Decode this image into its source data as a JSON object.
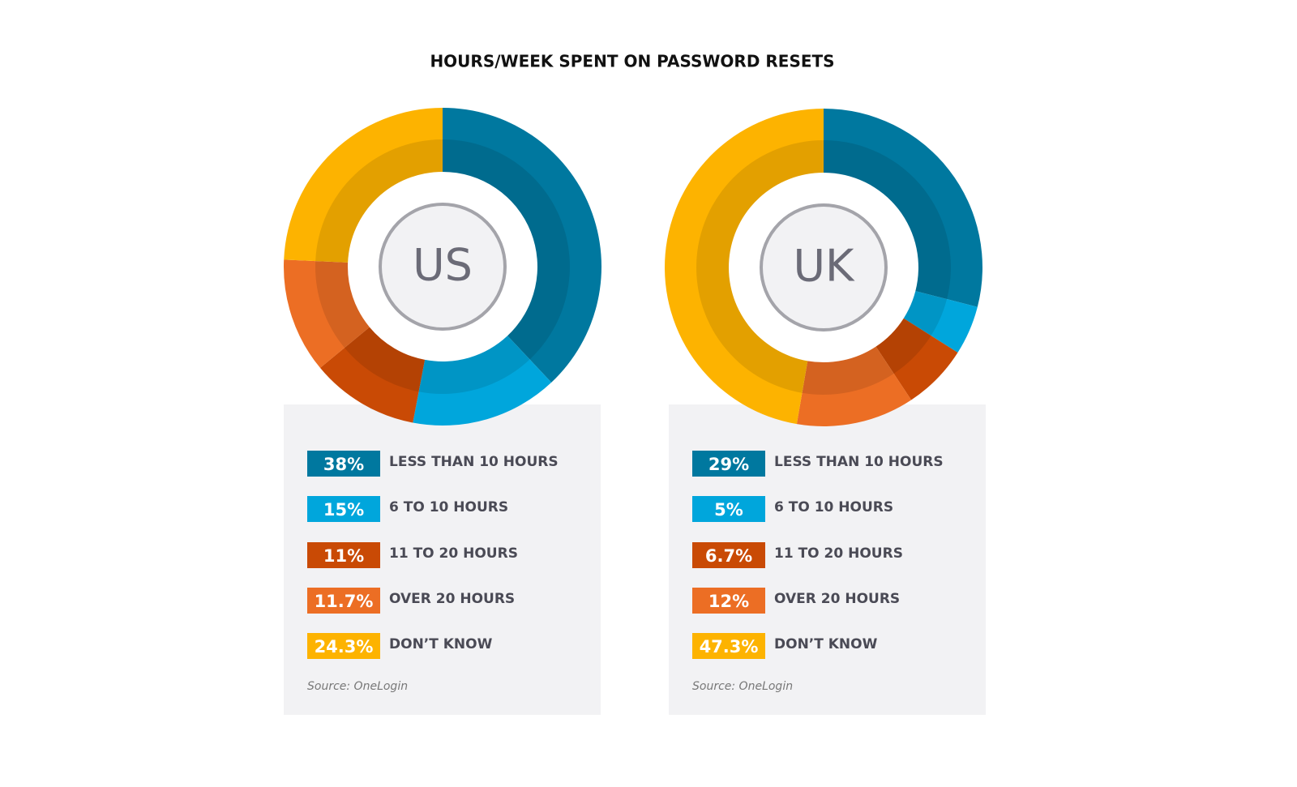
{
  "title": "HOURS/WEEK SPENT ON PASSWORD RESETS",
  "chart_data": [
    {
      "type": "pie",
      "label": "US",
      "categories": [
        "LESS THAN 10 HOURS",
        "6 TO 10 HOURS",
        "11 TO 20 HOURS",
        "OVER 20 HOURS",
        "DON’T KNOW"
      ],
      "values": [
        38,
        15,
        11,
        11.7,
        24.3
      ],
      "value_labels": [
        "38%",
        "15%",
        "11%",
        "11.7%",
        "24.3%"
      ],
      "colors": [
        "#00789f",
        "#00a6dc",
        "#c94a05",
        "#ec6e24",
        "#fdb300"
      ],
      "source": "Source: OneLogin"
    },
    {
      "type": "pie",
      "label": "UK",
      "categories": [
        "LESS THAN 10 HOURS",
        "6 TO 10 HOURS",
        "11 TO 20 HOURS",
        "OVER 20 HOURS",
        "DON’T KNOW"
      ],
      "values": [
        29,
        5,
        6.7,
        12,
        47.3
      ],
      "value_labels": [
        "29%",
        "5%",
        "6.7%",
        "12%",
        "47.3%"
      ],
      "colors": [
        "#00789f",
        "#00a6dc",
        "#c94a05",
        "#ec6e24",
        "#fdb300"
      ],
      "source": "Source: OneLogin"
    }
  ]
}
